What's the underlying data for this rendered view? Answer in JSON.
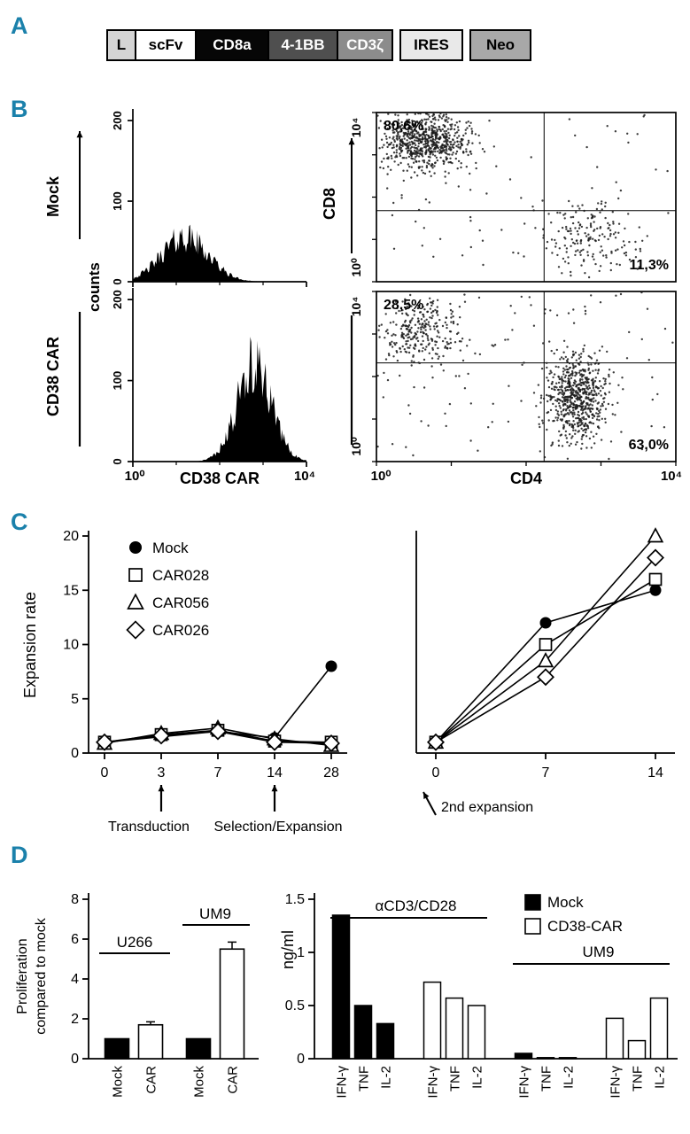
{
  "figure": {
    "accent": "#1b81ab",
    "panel_labels": [
      "A",
      "B",
      "C",
      "D"
    ]
  },
  "construct": {
    "segments": [
      {
        "label": "L",
        "bg": "#d4d4d4",
        "fg": "#000000",
        "w": 34,
        "gap": 0
      },
      {
        "label": "scFv",
        "bg": "#ffffff",
        "fg": "#000000",
        "w": 70,
        "gap": 0
      },
      {
        "label": "CD8a",
        "bg": "#060606",
        "fg": "#ffffff",
        "w": 84,
        "gap": 0
      },
      {
        "label": "4-1BB",
        "bg": "#4f4f4f",
        "fg": "#ffffff",
        "w": 80,
        "gap": 0
      },
      {
        "label": "CD3ζ",
        "bg": "#8c8c8c",
        "fg": "#ffffff",
        "w": 64,
        "gap": 0
      },
      {
        "label": "IRES",
        "bg": "#e9e9e9",
        "fg": "#000000",
        "w": 72,
        "gap": 7
      },
      {
        "label": "Neo",
        "bg": "#a8a8a8",
        "fg": "#000000",
        "w": 70,
        "gap": 7
      }
    ]
  },
  "flow": {
    "row_labels": [
      "Mock",
      "CD38 CAR"
    ],
    "counts_label": "counts",
    "hist_xlabel": "CD38 CAR",
    "log_ticks": [
      "10⁰",
      "10⁴"
    ],
    "scatter_xlabel": "CD4",
    "scatter_ylabel": "CD8"
  },
  "chart_data": [
    {
      "id": "hist-mock",
      "type": "area",
      "name": "Mock CD38-CAR expression histogram",
      "x_axis": "CD38 CAR (log 10⁰ to 10⁴)",
      "y_axis": "counts",
      "ylim": [
        0,
        210
      ],
      "yticks": [
        0,
        100,
        200
      ],
      "peak": {
        "center": 0.3,
        "sigma": 0.135,
        "height": 55
      }
    },
    {
      "id": "hist-car",
      "type": "area",
      "name": "CD38 CAR expression histogram",
      "x_axis": "CD38 CAR (log 10⁰ to 10⁴)",
      "y_axis": "counts",
      "ylim": [
        0,
        210
      ],
      "yticks": [
        0,
        100,
        200
      ],
      "peak": {
        "center": 0.7,
        "sigma": 0.1,
        "height": 118
      }
    },
    {
      "id": "scatter-mock",
      "type": "scatter",
      "name": "Mock CD4/CD8 dot plot",
      "x_axis": "CD4",
      "y_axis": "CD8",
      "quadrant": {
        "vx": 0.56,
        "hy": 0.58
      },
      "quad_labels": {
        "upper_left": "80,6%",
        "lower_right": "11,3%"
      },
      "clusters": [
        {
          "n": 700,
          "cx": 0.16,
          "cy": 0.17,
          "sx": 0.1,
          "sy": 0.11
        },
        {
          "n": 170,
          "cx": 0.7,
          "cy": 0.74,
          "sx": 0.1,
          "sy": 0.13
        },
        {
          "n": 90,
          "uniform": true
        }
      ]
    },
    {
      "id": "scatter-car",
      "type": "scatter",
      "name": "CD38 CAR CD4/CD8 dot plot",
      "x_axis": "CD4",
      "y_axis": "CD8",
      "quadrant": {
        "vx": 0.56,
        "hy": 0.42
      },
      "quad_labels": {
        "upper_left": "28,5%",
        "lower_right": "63,0%"
      },
      "clusters": [
        {
          "n": 280,
          "cx": 0.15,
          "cy": 0.24,
          "sx": 0.09,
          "sy": 0.13
        },
        {
          "n": 650,
          "cx": 0.67,
          "cy": 0.62,
          "sx": 0.065,
          "sy": 0.16
        },
        {
          "n": 120,
          "uniform": true
        }
      ]
    },
    {
      "id": "expansion-first",
      "type": "line",
      "ylabel": "Expansion rate",
      "ylim": [
        0,
        20
      ],
      "yticks": [
        0,
        5,
        10,
        15,
        20
      ],
      "categories": [
        "0",
        "3",
        "7",
        "14",
        "28"
      ],
      "series": [
        {
          "name": "Mock",
          "marker": "circle-filled",
          "values": [
            1.0,
            1.5,
            2.0,
            1.4,
            8.0
          ]
        },
        {
          "name": "CAR028",
          "marker": "square-open",
          "values": [
            1.0,
            1.7,
            2.1,
            1.1,
            1.0
          ]
        },
        {
          "name": "CAR056",
          "marker": "triangle-open",
          "values": [
            0.9,
            1.8,
            2.3,
            1.3,
            0.7
          ]
        },
        {
          "name": "CAR026",
          "marker": "diamond-open",
          "values": [
            1.0,
            1.6,
            2.0,
            1.0,
            0.9
          ]
        }
      ],
      "annotations": [
        {
          "text": "Transduction",
          "at": "3"
        },
        {
          "text": "Selection/Expansion",
          "at": "14"
        }
      ]
    },
    {
      "id": "expansion-second",
      "type": "line",
      "ylabel": "",
      "ylim": [
        0,
        20
      ],
      "categories": [
        "0",
        "7",
        "14"
      ],
      "series": [
        {
          "name": "Mock",
          "marker": "circle-filled",
          "values": [
            1.0,
            12.0,
            15.0
          ]
        },
        {
          "name": "CAR028",
          "marker": "square-open",
          "values": [
            1.0,
            10.0,
            16.0
          ]
        },
        {
          "name": "CAR056",
          "marker": "triangle-open",
          "values": [
            1.0,
            8.5,
            20.0
          ]
        },
        {
          "name": "CAR026",
          "marker": "diamond-open",
          "values": [
            1.0,
            7.0,
            18.0
          ]
        }
      ],
      "annotation": "2nd expansion"
    },
    {
      "id": "proliferation",
      "type": "bar",
      "ylabel_lines": [
        "Proliferation",
        "compared to mock"
      ],
      "ylim": [
        0,
        8
      ],
      "yticks": [
        0,
        2,
        4,
        6,
        8
      ],
      "groups": [
        {
          "label": "U266",
          "bars": [
            {
              "label": "Mock",
              "value": 1.0,
              "fill": "#000000"
            },
            {
              "label": "CAR",
              "value": 1.7,
              "fill": "#ffffff",
              "error": 0.15
            }
          ]
        },
        {
          "label": "UM9",
          "bars": [
            {
              "label": "Mock",
              "value": 1.0,
              "fill": "#000000"
            },
            {
              "label": "CAR",
              "value": 5.5,
              "fill": "#ffffff",
              "error": 0.35
            }
          ]
        }
      ]
    },
    {
      "id": "cytokines",
      "type": "bar",
      "ylabel": "ng/ml",
      "ylim": [
        0,
        1.5
      ],
      "yticks": [
        "0",
        "0.5",
        "1",
        "1.5"
      ],
      "legend": [
        {
          "label": "Mock",
          "fill": "#000000"
        },
        {
          "label": "CD38-CAR",
          "fill": "#ffffff"
        }
      ],
      "sections": [
        {
          "label": "αCD3/CD28",
          "groups": [
            0,
            1
          ]
        },
        {
          "label": "UM9",
          "groups": [
            2,
            3
          ]
        }
      ],
      "groups": [
        {
          "name": "Mock aCD3/CD28",
          "fill": "#000000",
          "bars": [
            {
              "label": "IFN-γ",
              "value": 1.35
            },
            {
              "label": "TNF",
              "value": 0.5
            },
            {
              "label": "IL-2",
              "value": 0.33
            }
          ]
        },
        {
          "name": "CD38-CAR aCD3/CD28",
          "fill": "#ffffff",
          "bars": [
            {
              "label": "IFN-γ",
              "value": 0.72
            },
            {
              "label": "TNF",
              "value": 0.57
            },
            {
              "label": "IL-2",
              "value": 0.5
            }
          ]
        },
        {
          "name": "Mock UM9",
          "fill": "#000000",
          "bars": [
            {
              "label": "IFN-γ",
              "value": 0.05
            },
            {
              "label": "TNF",
              "value": 0.01
            },
            {
              "label": "IL-2",
              "value": 0.01
            }
          ]
        },
        {
          "name": "CD38-CAR UM9",
          "fill": "#ffffff",
          "bars": [
            {
              "label": "IFN-γ",
              "value": 0.38
            },
            {
              "label": "TNF",
              "value": 0.17
            },
            {
              "label": "IL-2",
              "value": 0.57
            }
          ]
        }
      ]
    }
  ]
}
